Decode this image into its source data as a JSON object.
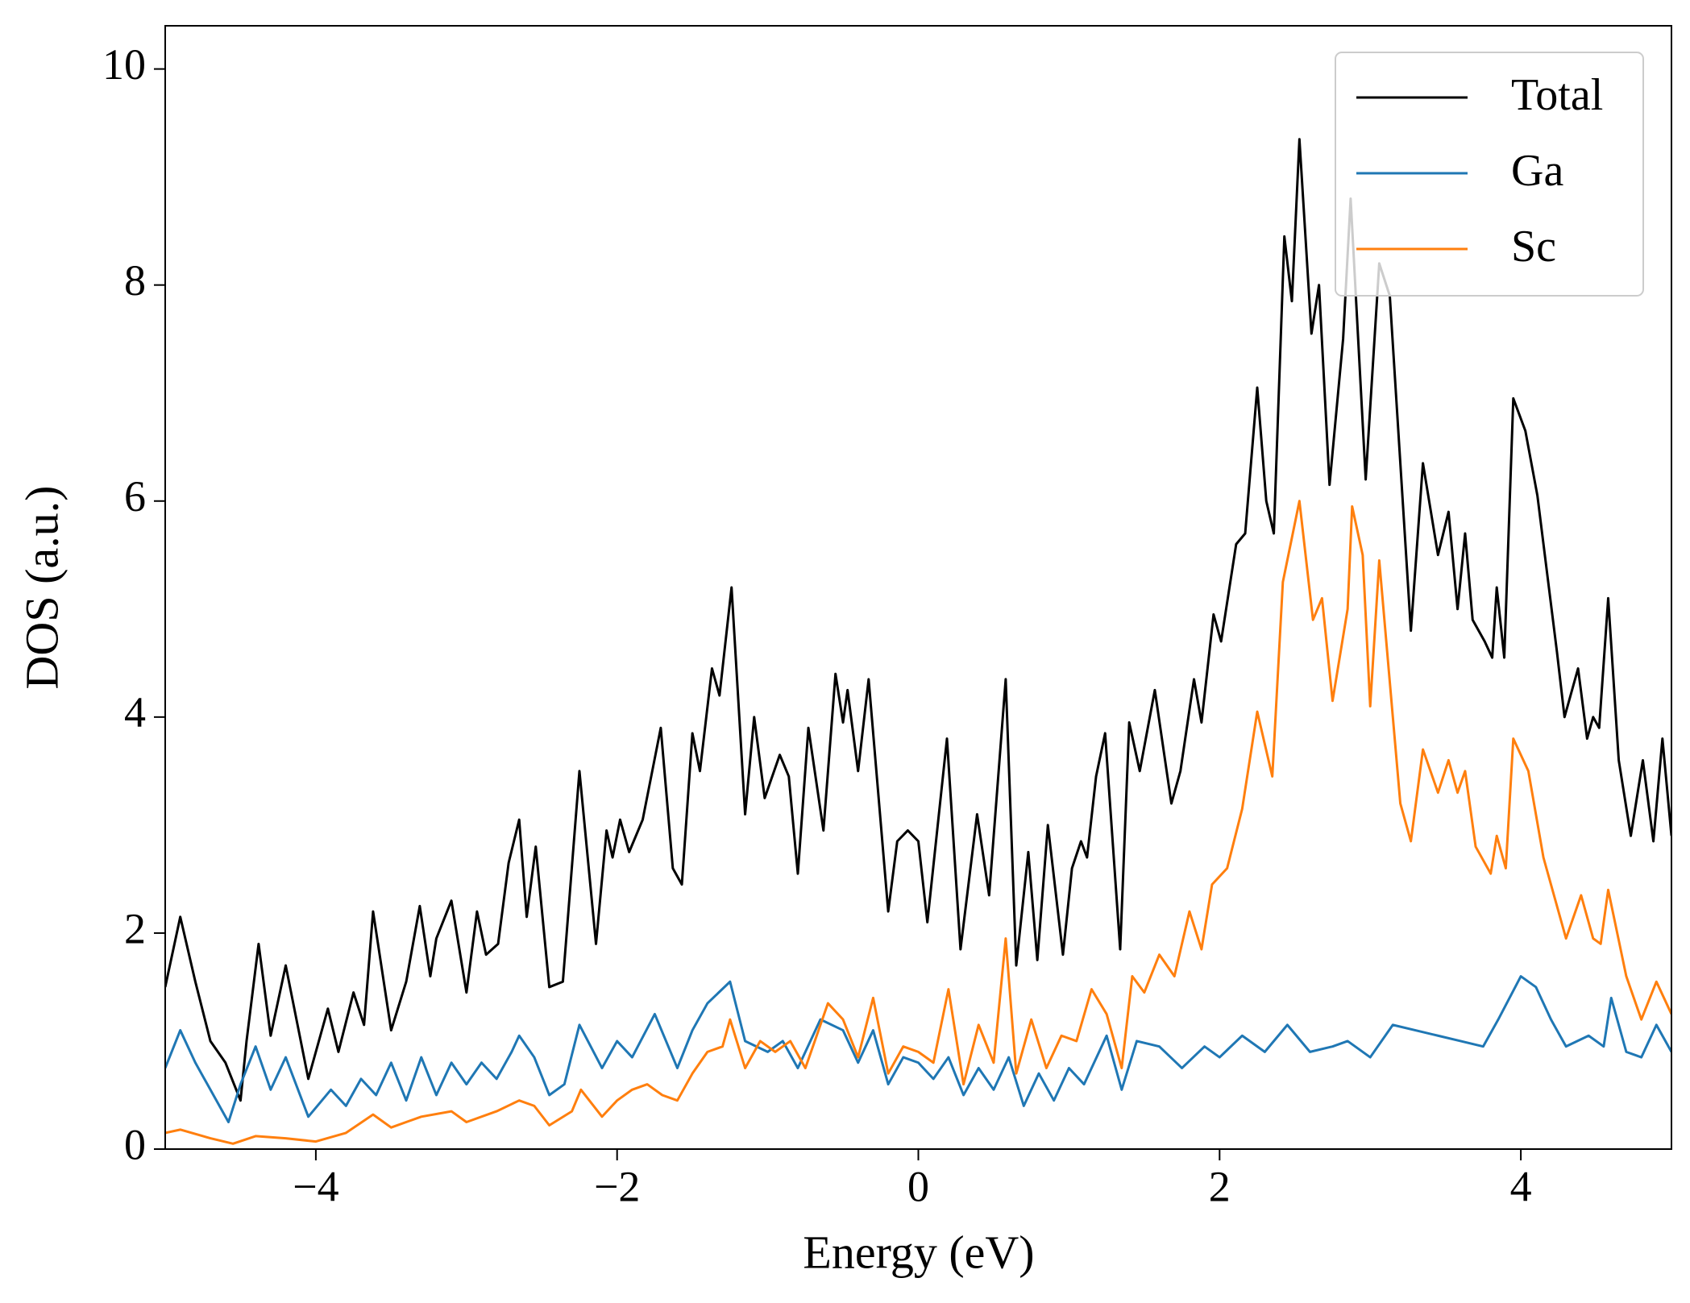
{
  "chart_data": {
    "type": "line",
    "xlabel": "Energy (eV)",
    "ylabel": "DOS (a.u.)",
    "xlim": [
      -5,
      5
    ],
    "ylim": [
      0,
      10.4
    ],
    "xticks": [
      {
        "value": -4,
        "label": "−4"
      },
      {
        "value": -2,
        "label": "−2"
      },
      0,
      2,
      4
    ],
    "yticks": [
      0,
      2,
      4,
      6,
      8,
      10
    ],
    "grid": false,
    "legend": "upper right",
    "series": [
      {
        "name": "Total",
        "color": "#000000",
        "x": [
          -5,
          -4.9,
          -4.8,
          -4.7,
          -4.6,
          -4.5,
          -4.46,
          -4.38,
          -4.3,
          -4.2,
          -4.05,
          -3.92,
          -3.85,
          -3.75,
          -3.68,
          -3.62,
          -3.5,
          -3.4,
          -3.31,
          -3.24,
          -3.2,
          -3.1,
          -3.0,
          -2.93,
          -2.87,
          -2.79,
          -2.72,
          -2.65,
          -2.6,
          -2.54,
          -2.45,
          -2.36,
          -2.25,
          -2.14,
          -2.07,
          -2.03,
          -1.98,
          -1.92,
          -1.83,
          -1.71,
          -1.63,
          -1.57,
          -1.5,
          -1.45,
          -1.37,
          -1.32,
          -1.24,
          -1.15,
          -1.09,
          -1.02,
          -0.92,
          -0.86,
          -0.8,
          -0.73,
          -0.63,
          -0.55,
          -0.5,
          -0.47,
          -0.4,
          -0.33,
          -0.2,
          -0.14,
          -0.07,
          0,
          0.06,
          0.19,
          0.28,
          0.39,
          0.47,
          0.58,
          0.65,
          0.73,
          0.79,
          0.86,
          0.96,
          1.02,
          1.08,
          1.12,
          1.18,
          1.24,
          1.34,
          1.4,
          1.47,
          1.57,
          1.68,
          1.74,
          1.83,
          1.88,
          1.96,
          2.01,
          2.11,
          2.17,
          2.25,
          2.31,
          2.36,
          2.43,
          2.48,
          2.53,
          2.61,
          2.66,
          2.73,
          2.82,
          2.87,
          2.97,
          3.06,
          3.13,
          3.27,
          3.35,
          3.45,
          3.52,
          3.58,
          3.63,
          3.68,
          3.76,
          3.81,
          3.84,
          3.89,
          3.95,
          4.03,
          4.11,
          4.24,
          4.29,
          4.38,
          4.44,
          4.48,
          4.52,
          4.58,
          4.65,
          4.73,
          4.81,
          4.88,
          4.94,
          5.0
        ],
        "values": [
          1.5,
          2.15,
          1.55,
          1.0,
          0.8,
          0.45,
          1.0,
          1.9,
          1.05,
          1.7,
          0.65,
          1.3,
          0.9,
          1.45,
          1.15,
          2.2,
          1.1,
          1.55,
          2.25,
          1.6,
          1.95,
          2.3,
          1.45,
          2.2,
          1.8,
          1.9,
          2.65,
          3.05,
          2.15,
          2.8,
          1.5,
          1.55,
          3.5,
          1.9,
          2.95,
          2.7,
          3.05,
          2.75,
          3.05,
          3.9,
          2.6,
          2.45,
          3.85,
          3.5,
          4.45,
          4.2,
          5.2,
          3.1,
          4.0,
          3.25,
          3.65,
          3.45,
          2.55,
          3.9,
          2.95,
          4.4,
          3.95,
          4.25,
          3.5,
          4.35,
          2.2,
          2.85,
          2.95,
          2.85,
          2.1,
          3.8,
          1.85,
          3.1,
          2.35,
          4.35,
          1.7,
          2.75,
          1.75,
          3.0,
          1.8,
          2.6,
          2.85,
          2.7,
          3.45,
          3.85,
          1.85,
          3.95,
          3.5,
          4.25,
          3.2,
          3.5,
          4.35,
          3.95,
          4.95,
          4.7,
          5.6,
          5.7,
          7.05,
          6.0,
          5.7,
          8.45,
          7.85,
          9.35,
          7.55,
          8.0,
          6.15,
          7.5,
          8.8,
          6.2,
          8.2,
          7.9,
          4.8,
          6.35,
          5.5,
          5.9,
          5.0,
          5.7,
          4.9,
          4.7,
          4.55,
          5.2,
          4.55,
          6.95,
          6.65,
          6.05,
          4.6,
          4.0,
          4.45,
          3.8,
          4.0,
          3.9,
          5.1,
          3.6,
          2.9,
          3.6,
          2.85,
          3.8,
          2.9
        ]
      },
      {
        "name": "Ga",
        "color": "#1f77b4",
        "x": [
          -5,
          -4.9,
          -4.8,
          -4.7,
          -4.58,
          -4.5,
          -4.4,
          -4.3,
          -4.2,
          -4.05,
          -3.9,
          -3.8,
          -3.7,
          -3.6,
          -3.5,
          -3.4,
          -3.3,
          -3.2,
          -3.1,
          -3.0,
          -2.9,
          -2.8,
          -2.7,
          -2.65,
          -2.55,
          -2.45,
          -2.35,
          -2.25,
          -2.1,
          -2.0,
          -1.9,
          -1.75,
          -1.6,
          -1.5,
          -1.4,
          -1.25,
          -1.15,
          -1.0,
          -0.9,
          -0.8,
          -0.65,
          -0.5,
          -0.4,
          -0.3,
          -0.2,
          -0.1,
          0,
          0.1,
          0.2,
          0.3,
          0.4,
          0.5,
          0.6,
          0.7,
          0.8,
          0.9,
          1.0,
          1.1,
          1.25,
          1.35,
          1.45,
          1.6,
          1.75,
          1.9,
          2.0,
          2.15,
          2.3,
          2.45,
          2.6,
          2.75,
          2.85,
          3.0,
          3.15,
          3.3,
          3.45,
          3.6,
          3.75,
          3.85,
          4.0,
          4.1,
          4.2,
          4.3,
          4.45,
          4.55,
          4.6,
          4.7,
          4.8,
          4.9,
          5.0
        ],
        "values": [
          0.75,
          1.1,
          0.8,
          0.55,
          0.25,
          0.6,
          0.95,
          0.55,
          0.85,
          0.3,
          0.55,
          0.4,
          0.65,
          0.5,
          0.8,
          0.45,
          0.85,
          0.5,
          0.8,
          0.6,
          0.8,
          0.65,
          0.9,
          1.05,
          0.85,
          0.5,
          0.6,
          1.15,
          0.75,
          1.0,
          0.85,
          1.25,
          0.75,
          1.1,
          1.35,
          1.55,
          1.0,
          0.9,
          1.0,
          0.75,
          1.2,
          1.1,
          0.8,
          1.1,
          0.6,
          0.85,
          0.8,
          0.65,
          0.85,
          0.5,
          0.75,
          0.55,
          0.85,
          0.4,
          0.7,
          0.45,
          0.75,
          0.6,
          1.05,
          0.55,
          1.0,
          0.95,
          0.75,
          0.95,
          0.85,
          1.05,
          0.9,
          1.15,
          0.9,
          0.95,
          1.0,
          0.85,
          1.15,
          1.1,
          1.05,
          1.0,
          0.95,
          1.2,
          1.6,
          1.5,
          1.2,
          0.95,
          1.05,
          0.95,
          1.4,
          0.9,
          0.85,
          1.15,
          0.9
        ]
      },
      {
        "name": "Sc",
        "color": "#ff7f0e",
        "x": [
          -5,
          -4.9,
          -4.7,
          -4.55,
          -4.4,
          -4.2,
          -4.0,
          -3.8,
          -3.62,
          -3.5,
          -3.3,
          -3.1,
          -3.0,
          -2.8,
          -2.65,
          -2.55,
          -2.45,
          -2.3,
          -2.24,
          -2.1,
          -2.0,
          -1.9,
          -1.8,
          -1.7,
          -1.6,
          -1.5,
          -1.4,
          -1.3,
          -1.25,
          -1.15,
          -1.05,
          -0.95,
          -0.85,
          -0.75,
          -0.6,
          -0.5,
          -0.4,
          -0.3,
          -0.2,
          -0.1,
          0,
          0.1,
          0.2,
          0.3,
          0.4,
          0.5,
          0.58,
          0.65,
          0.75,
          0.85,
          0.95,
          1.05,
          1.15,
          1.25,
          1.35,
          1.42,
          1.5,
          1.6,
          1.7,
          1.8,
          1.88,
          1.95,
          2.05,
          2.15,
          2.25,
          2.35,
          2.42,
          2.53,
          2.62,
          2.68,
          2.75,
          2.85,
          2.88,
          2.95,
          3.0,
          3.06,
          3.2,
          3.27,
          3.35,
          3.45,
          3.52,
          3.58,
          3.63,
          3.7,
          3.8,
          3.84,
          3.9,
          3.95,
          4.05,
          4.15,
          4.3,
          4.4,
          4.48,
          4.53,
          4.58,
          4.7,
          4.8,
          4.9,
          5.0
        ],
        "values": [
          0.15,
          0.18,
          0.1,
          0.05,
          0.12,
          0.1,
          0.07,
          0.15,
          0.32,
          0.2,
          0.3,
          0.35,
          0.25,
          0.35,
          0.45,
          0.4,
          0.22,
          0.35,
          0.55,
          0.3,
          0.45,
          0.55,
          0.6,
          0.5,
          0.45,
          0.7,
          0.9,
          0.95,
          1.2,
          0.75,
          1.0,
          0.9,
          1.0,
          0.75,
          1.35,
          1.2,
          0.85,
          1.4,
          0.7,
          0.95,
          0.9,
          0.8,
          1.48,
          0.6,
          1.15,
          0.8,
          1.95,
          0.7,
          1.2,
          0.75,
          1.05,
          1.0,
          1.48,
          1.25,
          0.75,
          1.6,
          1.45,
          1.8,
          1.6,
          2.2,
          1.85,
          2.45,
          2.6,
          3.15,
          4.05,
          3.45,
          5.25,
          6.0,
          4.9,
          5.1,
          4.15,
          5.0,
          5.95,
          5.5,
          4.1,
          5.45,
          3.2,
          2.85,
          3.7,
          3.3,
          3.6,
          3.3,
          3.5,
          2.8,
          2.55,
          2.9,
          2.6,
          3.8,
          3.5,
          2.7,
          1.95,
          2.35,
          1.95,
          1.9,
          2.4,
          1.6,
          1.2,
          1.55,
          1.25
        ]
      }
    ]
  }
}
